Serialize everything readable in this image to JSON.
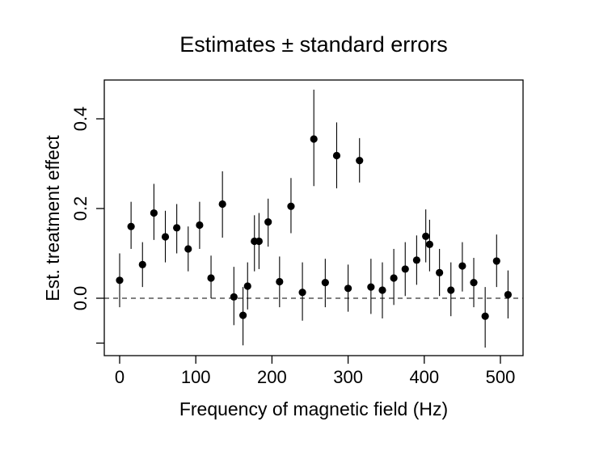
{
  "chart_data": {
    "type": "scatter",
    "title": "Estimates ± standard errors",
    "xlabel": "Frequency of magnetic field (Hz)",
    "ylabel": "Est. treatment effect",
    "xlim": [
      -10,
      530
    ],
    "ylim": [
      -0.13,
      0.48
    ],
    "xticks": [
      0,
      100,
      200,
      300,
      400,
      500
    ],
    "xtick_labels": [
      "0",
      "100",
      "200",
      "300",
      "400",
      "500"
    ],
    "yticks": [
      0.0,
      0.2,
      0.4
    ],
    "ytick_labels": [
      "0.0",
      "0.2",
      "0.4"
    ],
    "reference_line": {
      "y": 0.0,
      "style": "dashed"
    },
    "grid": false,
    "series": [
      {
        "points": [
          {
            "x": 0,
            "y": 0.04,
            "lo": -0.02,
            "hi": 0.1
          },
          {
            "x": 15,
            "y": 0.16,
            "lo": 0.11,
            "hi": 0.215
          },
          {
            "x": 30,
            "y": 0.075,
            "lo": 0.025,
            "hi": 0.125
          },
          {
            "x": 45,
            "y": 0.19,
            "lo": 0.13,
            "hi": 0.255
          },
          {
            "x": 60,
            "y": 0.137,
            "lo": 0.08,
            "hi": 0.195
          },
          {
            "x": 75,
            "y": 0.157,
            "lo": 0.1,
            "hi": 0.21
          },
          {
            "x": 90,
            "y": 0.11,
            "lo": 0.06,
            "hi": 0.16
          },
          {
            "x": 105,
            "y": 0.163,
            "lo": 0.11,
            "hi": 0.215
          },
          {
            "x": 120,
            "y": 0.045,
            "lo": 0.0,
            "hi": 0.095
          },
          {
            "x": 135,
            "y": 0.21,
            "lo": 0.135,
            "hi": 0.283
          },
          {
            "x": 150,
            "y": 0.003,
            "lo": -0.06,
            "hi": 0.07
          },
          {
            "x": 162,
            "y": -0.038,
            "lo": -0.105,
            "hi": 0.025
          },
          {
            "x": 168,
            "y": 0.027,
            "lo": -0.025,
            "hi": 0.08
          },
          {
            "x": 177,
            "y": 0.127,
            "lo": 0.06,
            "hi": 0.185
          },
          {
            "x": 183,
            "y": 0.127,
            "lo": 0.065,
            "hi": 0.19
          },
          {
            "x": 195,
            "y": 0.17,
            "lo": 0.115,
            "hi": 0.222
          },
          {
            "x": 210,
            "y": 0.037,
            "lo": -0.02,
            "hi": 0.093
          },
          {
            "x": 225,
            "y": 0.205,
            "lo": 0.145,
            "hi": 0.268
          },
          {
            "x": 240,
            "y": 0.013,
            "lo": -0.05,
            "hi": 0.08
          },
          {
            "x": 255,
            "y": 0.355,
            "lo": 0.25,
            "hi": 0.465
          },
          {
            "x": 270,
            "y": 0.035,
            "lo": -0.02,
            "hi": 0.088
          },
          {
            "x": 285,
            "y": 0.318,
            "lo": 0.245,
            "hi": 0.392
          },
          {
            "x": 300,
            "y": 0.022,
            "lo": -0.03,
            "hi": 0.075
          },
          {
            "x": 315,
            "y": 0.307,
            "lo": 0.258,
            "hi": 0.357
          },
          {
            "x": 330,
            "y": 0.025,
            "lo": -0.035,
            "hi": 0.088
          },
          {
            "x": 345,
            "y": 0.018,
            "lo": -0.045,
            "hi": 0.08
          },
          {
            "x": 360,
            "y": 0.045,
            "lo": -0.015,
            "hi": 0.11
          },
          {
            "x": 375,
            "y": 0.065,
            "lo": 0.005,
            "hi": 0.125
          },
          {
            "x": 390,
            "y": 0.085,
            "lo": 0.03,
            "hi": 0.14
          },
          {
            "x": 402,
            "y": 0.138,
            "lo": 0.08,
            "hi": 0.198
          },
          {
            "x": 407,
            "y": 0.12,
            "lo": 0.06,
            "hi": 0.175
          },
          {
            "x": 420,
            "y": 0.057,
            "lo": 0.005,
            "hi": 0.11
          },
          {
            "x": 435,
            "y": 0.018,
            "lo": -0.04,
            "hi": 0.08
          },
          {
            "x": 450,
            "y": 0.072,
            "lo": 0.015,
            "hi": 0.125
          },
          {
            "x": 465,
            "y": 0.035,
            "lo": -0.02,
            "hi": 0.09
          },
          {
            "x": 480,
            "y": -0.04,
            "lo": -0.11,
            "hi": 0.025
          },
          {
            "x": 495,
            "y": 0.083,
            "lo": 0.025,
            "hi": 0.142
          },
          {
            "x": 510,
            "y": 0.008,
            "lo": -0.045,
            "hi": 0.062
          }
        ]
      }
    ]
  }
}
